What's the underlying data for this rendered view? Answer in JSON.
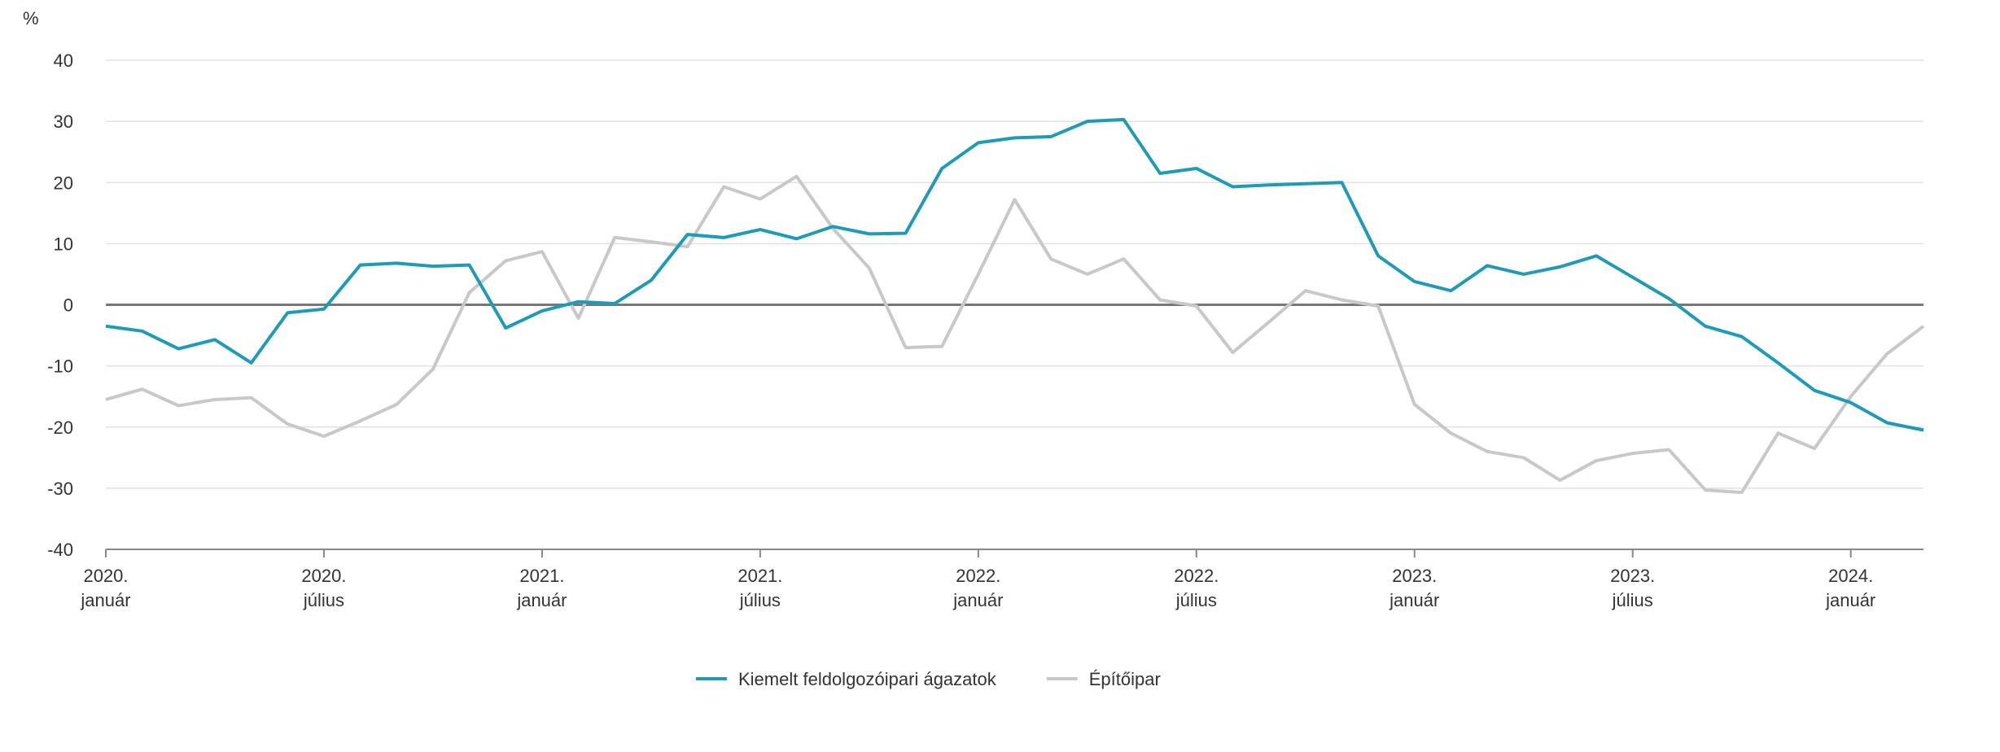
{
  "chart_data": {
    "type": "line",
    "y_unit": "%",
    "categories": [
      "2020. január",
      null,
      null,
      null,
      null,
      null,
      "2020. július",
      null,
      null,
      null,
      null,
      null,
      "2021. január",
      null,
      null,
      null,
      null,
      null,
      "2021. július",
      null,
      null,
      null,
      null,
      null,
      "2022. január",
      null,
      null,
      null,
      null,
      null,
      "2022. július",
      null,
      null,
      null,
      null,
      null,
      "2023. január",
      null,
      null,
      null,
      null,
      null,
      "2023. július",
      null,
      null,
      null,
      null,
      null,
      "2024. január",
      null,
      null
    ],
    "series": [
      {
        "name": "Kiemelt feldolgozóipari ágazatok",
        "color": "#1f9bb5",
        "values": [
          -3.5,
          -4.3,
          -7.2,
          -5.7,
          -9.5,
          -1.3,
          -0.7,
          6.5,
          6.8,
          6.3,
          6.5,
          -3.8,
          -1,
          0.5,
          0.2,
          4,
          11.5,
          11,
          12.3,
          10.8,
          12.8,
          11.6,
          11.7,
          22.3,
          26.5,
          27.3,
          27.5,
          30,
          30.3,
          21.5,
          22.3,
          19.3,
          19.6,
          19.8,
          20,
          8,
          3.8,
          2.3,
          6.4,
          5,
          6.2,
          8,
          4.5,
          1,
          -3.5,
          -5.2,
          -9.5,
          -14,
          -16,
          -19.3,
          -20.5
        ]
      },
      {
        "name": "Építőipar",
        "color": "#c8c8c8",
        "values": [
          -15.5,
          -13.8,
          -16.5,
          -15.5,
          -15.2,
          -19.5,
          -21.5,
          -19,
          -16.3,
          -10.5,
          2,
          7.2,
          8.7,
          -2.2,
          11,
          10.3,
          9.5,
          19.3,
          17.3,
          21,
          12.5,
          6,
          -7,
          -6.8,
          5,
          17.2,
          7.5,
          5,
          7.5,
          0.8,
          -0.2,
          -7.8,
          -2.8,
          2.3,
          0.8,
          -0.2,
          -16.3,
          -21,
          -24,
          -25,
          -28.7,
          -25.5,
          -24.3,
          -23.7,
          -30.3,
          -30.7,
          -21,
          -23.5,
          -15,
          -8,
          -3.5
        ]
      }
    ],
    "ylim": [
      -40,
      40
    ],
    "yticks": [
      -40,
      -30,
      -20,
      -10,
      0,
      10,
      20,
      30,
      40
    ],
    "grid": true,
    "legend": "bottom"
  }
}
